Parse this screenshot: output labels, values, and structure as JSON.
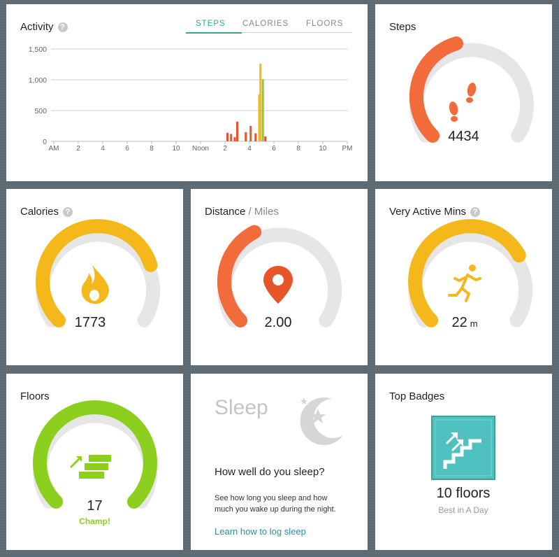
{
  "activity": {
    "title": "Activity",
    "help": "?",
    "tabs": [
      {
        "label": "STEPS"
      },
      {
        "label": "CALORIES"
      },
      {
        "label": "FLOORS"
      }
    ]
  },
  "chart_data": {
    "type": "bar",
    "title": "",
    "xlabel": "",
    "ylabel": "",
    "ylim": [
      0,
      1500
    ],
    "yticks": [
      "0",
      "500",
      "1,000",
      "1,500"
    ],
    "xticks": [
      "AM",
      "2",
      "4",
      "6",
      "8",
      "10",
      "Noon",
      "2",
      "4",
      "6",
      "8",
      "10",
      "PM"
    ],
    "x_hours": [
      14.2,
      14.5,
      14.8,
      15.0,
      15.7,
      16.1,
      16.5,
      16.8,
      16.9,
      17.1,
      17.3
    ],
    "values": [
      140,
      120,
      70,
      320,
      150,
      250,
      130,
      760,
      1260,
      1010,
      80
    ],
    "colors": [
      "#e8552b",
      "#e8552b",
      "#e8552b",
      "#e8552b",
      "#e8552b",
      "#e8552b",
      "#e8552b",
      "#f2b826",
      "#f2b826",
      "#8ccf1e",
      "#e8552b"
    ]
  },
  "steps": {
    "title": "Steps",
    "value": "4434",
    "progress": 0.44
  },
  "calories": {
    "title": "Calories",
    "help": "?",
    "value": "1773",
    "progress": 0.77
  },
  "distance": {
    "title": "Distance",
    "subtitle": " / Miles",
    "value": "2.00",
    "progress": 0.4
  },
  "active": {
    "title": "Very Active Mins",
    "help": "?",
    "value": "22",
    "unit": "m",
    "progress": 0.73
  },
  "floors": {
    "title": "Floors",
    "value": "17",
    "status": "Champ!",
    "progress": 1.0
  },
  "sleep": {
    "title": "Sleep",
    "question": "How well do you sleep?",
    "description": "See how long you sleep and how much you wake up during the night.",
    "link": "Learn how to log sleep"
  },
  "badges": {
    "title": "Top Badges",
    "badge_title": "10 floors",
    "badge_sub": "Best in A Day"
  },
  "colors": {
    "red": "#f26b3a",
    "yellow": "#f5b81a",
    "green": "#8ccf1e",
    "track": "#e6e6e6",
    "teal": "#3aa39a",
    "badge": "#4ec1c0"
  }
}
